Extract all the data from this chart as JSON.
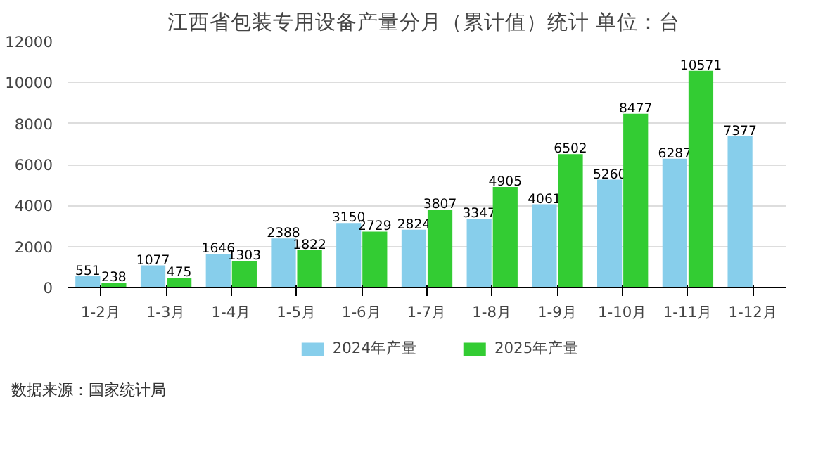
{
  "chart_data": {
    "type": "bar",
    "title": "江西省包装专用设备产量分月（累计值）统计  单位：台",
    "categories": [
      "1-2月",
      "1-3月",
      "1-4月",
      "1-5月",
      "1-6月",
      "1-7月",
      "1-8月",
      "1-9月",
      "1-10月",
      "1-11月",
      "1-12月"
    ],
    "series": [
      {
        "name": "2024年产量",
        "color": "#87ceeb",
        "values": [
          551,
          1077,
          1646,
          2388,
          3150,
          2824,
          3347,
          4061,
          5260,
          6287,
          7377
        ]
      },
      {
        "name": "2025年产量",
        "color": "#33cc33",
        "values": [
          238,
          475,
          1303,
          1822,
          2729,
          3807,
          4905,
          6502,
          8477,
          10571,
          null
        ]
      }
    ],
    "ylim": [
      0,
      12000
    ],
    "yticks": [
      0,
      2000,
      4000,
      6000,
      8000,
      10000,
      12000
    ],
    "grid": "y",
    "legend": "bottom",
    "data_labels": true,
    "annotations": [
      "数据来源：国家统计局"
    ]
  }
}
